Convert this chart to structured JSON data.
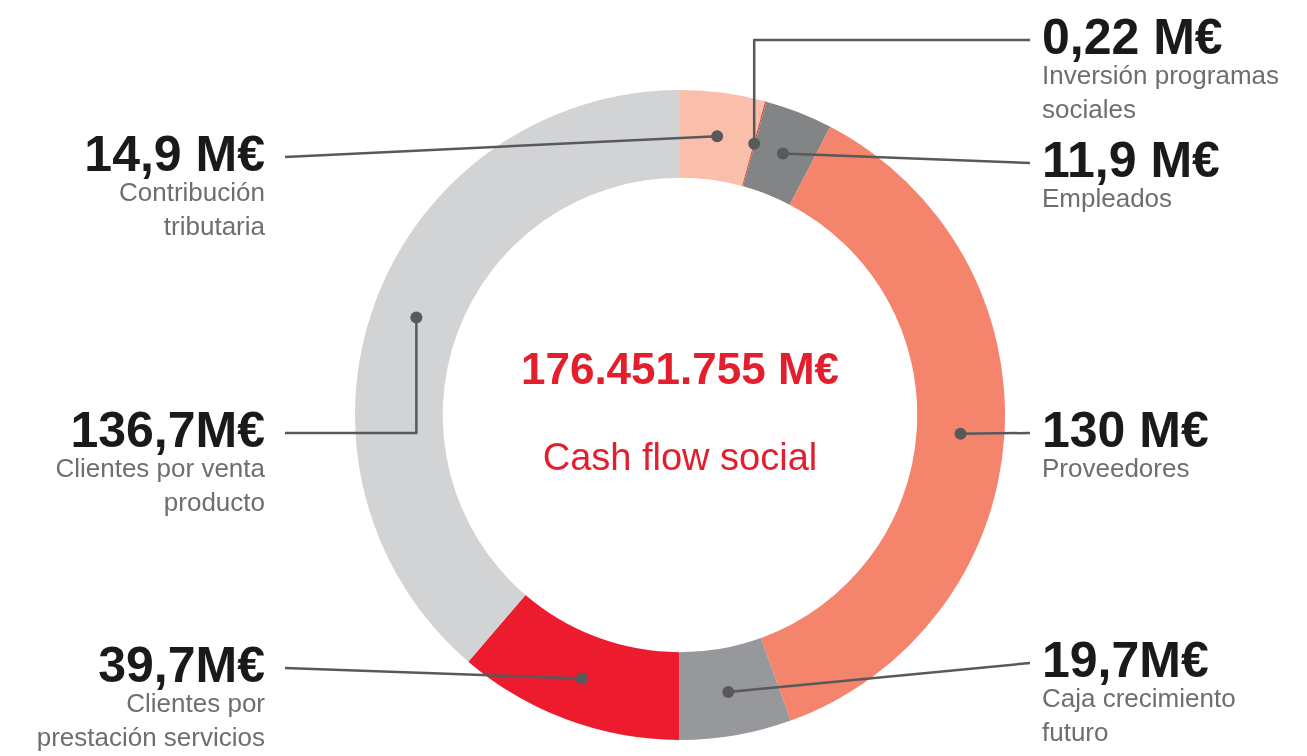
{
  "chart_data": {
    "type": "donut",
    "title": "176.451.755 M€",
    "subtitle": "Cash flow social",
    "categories": [
      "Contribución tributaria",
      "Inversión programas sociales",
      "Empleados",
      "Proveedores",
      "Caja crecimiento futuro",
      "Clientes por prestación servicios",
      "Clientes por venta producto"
    ],
    "values": [
      14.9,
      0.22,
      11.9,
      130,
      19.7,
      39.7,
      136.7
    ],
    "value_labels": [
      "14,9 M€",
      "0,22 M€",
      "11,9 M€",
      "130 M€",
      "19,7M€",
      "39,7M€",
      "136,7M€"
    ],
    "colors": [
      "#f9bfaa",
      "#e8412c",
      "#838486",
      "#f4846c",
      "#97989b",
      "#ec1c2e",
      "#d2d3d5"
    ]
  }
}
